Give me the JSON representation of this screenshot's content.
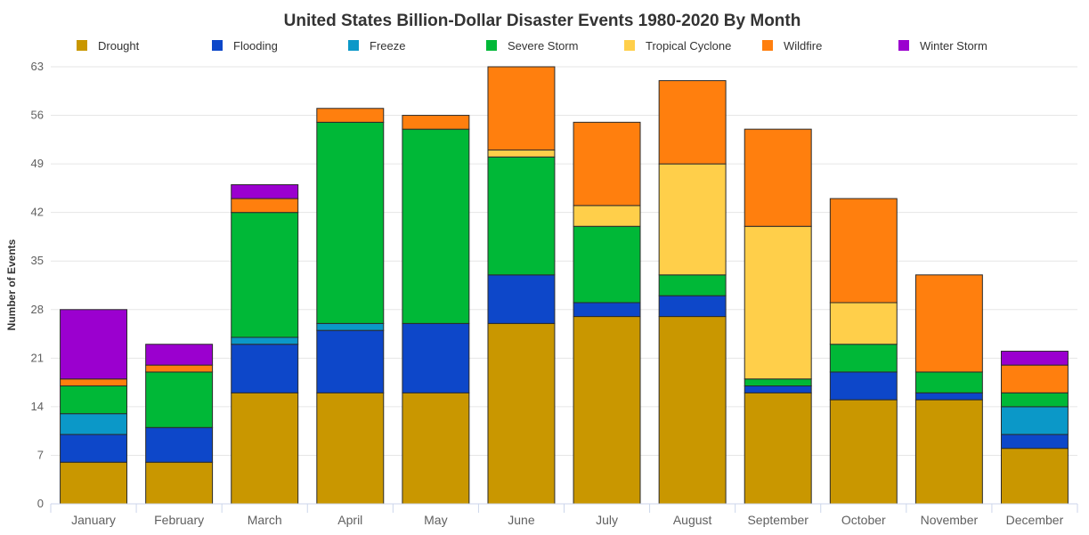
{
  "chart_data": {
    "type": "bar",
    "stacked": true,
    "title": "United States Billion-Dollar Disaster Events 1980-2020 By Month",
    "xlabel": "",
    "ylabel": "Number of Events",
    "ylim": [
      0,
      63
    ],
    "yticks": [
      0,
      7,
      14,
      21,
      28,
      35,
      42,
      49,
      56,
      63
    ],
    "grid": true,
    "legend_position": "top",
    "categories": [
      "January",
      "February",
      "March",
      "April",
      "May",
      "June",
      "July",
      "August",
      "September",
      "October",
      "November",
      "December"
    ],
    "series": [
      {
        "name": "Drought",
        "color": "#c99700",
        "values": [
          6,
          6,
          16,
          16,
          16,
          26,
          27,
          27,
          16,
          15,
          15,
          8
        ]
      },
      {
        "name": "Flooding",
        "color": "#0d47c9",
        "values": [
          4,
          5,
          7,
          9,
          10,
          7,
          2,
          3,
          1,
          4,
          1,
          2
        ]
      },
      {
        "name": "Freeze",
        "color": "#0b98c8",
        "values": [
          3,
          0,
          1,
          1,
          0,
          0,
          0,
          0,
          0,
          0,
          0,
          4
        ]
      },
      {
        "name": "Severe Storm",
        "color": "#00b837",
        "values": [
          4,
          8,
          18,
          29,
          28,
          17,
          11,
          3,
          1,
          4,
          3,
          2
        ]
      },
      {
        "name": "Tropical Cyclone",
        "color": "#ffcf4a",
        "values": [
          0,
          0,
          0,
          0,
          0,
          1,
          3,
          16,
          22,
          6,
          0,
          0
        ]
      },
      {
        "name": "Wildfire",
        "color": "#ff7f0e",
        "values": [
          1,
          1,
          2,
          2,
          2,
          12,
          12,
          12,
          14,
          15,
          14,
          4
        ]
      },
      {
        "name": "Winter Storm",
        "color": "#9b00cf",
        "values": [
          10,
          3,
          2,
          0,
          0,
          0,
          0,
          0,
          0,
          0,
          0,
          2
        ]
      }
    ]
  }
}
